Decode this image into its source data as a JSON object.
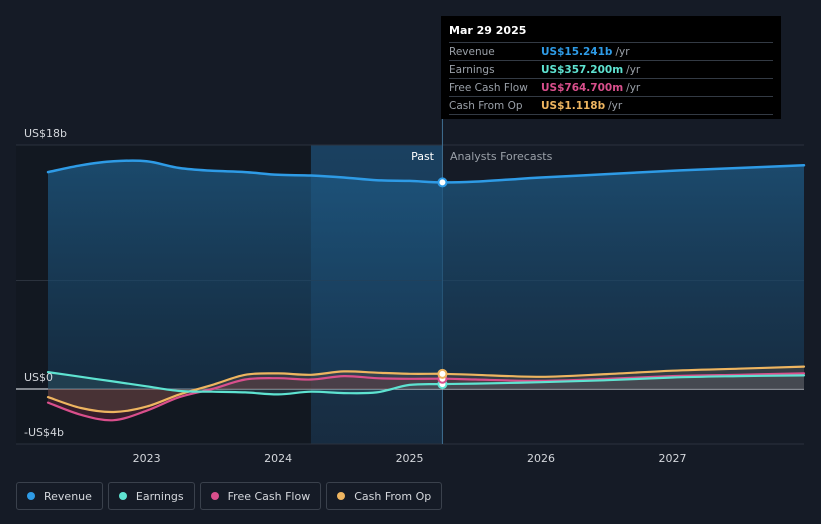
{
  "tooltip": {
    "date": "Mar 29 2025",
    "rows": [
      {
        "label": "Revenue",
        "value": "US$15.241b",
        "unit": "/yr",
        "color": "#2e9be6"
      },
      {
        "label": "Earnings",
        "value": "US$357.200m",
        "unit": "/yr",
        "color": "#5ee3d1"
      },
      {
        "label": "Free Cash Flow",
        "value": "US$764.700m",
        "unit": "/yr",
        "color": "#d94f8c"
      },
      {
        "label": "Cash From Op",
        "value": "US$1.118b",
        "unit": "/yr",
        "color": "#eeb560"
      }
    ]
  },
  "labels": {
    "past": "Past",
    "forecast": "Analysts Forecasts"
  },
  "legend": [
    {
      "label": "Revenue",
      "color": "#2e9be6"
    },
    {
      "label": "Earnings",
      "color": "#5ee3d1"
    },
    {
      "label": "Free Cash Flow",
      "color": "#d94f8c"
    },
    {
      "label": "Cash From Op",
      "color": "#eeb560"
    }
  ],
  "chart_data": {
    "type": "line",
    "y_unit": "US$ billions",
    "ylim": [
      -4,
      18
    ],
    "y_tick_labels": [
      {
        "value": 18,
        "label": "US$18b"
      },
      {
        "value": 0,
        "label": "US$0"
      },
      {
        "value": -4,
        "label": "-US$4b"
      }
    ],
    "x_range": [
      2022.25,
      2028.0
    ],
    "x_tick_labels": [
      {
        "value": 2023.0,
        "label": "2023"
      },
      {
        "value": 2024.0,
        "label": "2024"
      },
      {
        "value": 2025.0,
        "label": "2025"
      },
      {
        "value": 2026.0,
        "label": "2026"
      },
      {
        "value": 2027.0,
        "label": "2027"
      }
    ],
    "past_band_start": 2024.25,
    "present": 2025.25,
    "series": [
      {
        "name": "Revenue",
        "color": "#2e9be6",
        "points": [
          [
            2022.25,
            16.0
          ],
          [
            2022.5,
            16.5
          ],
          [
            2022.75,
            16.8
          ],
          [
            2023.0,
            16.8
          ],
          [
            2023.25,
            16.3
          ],
          [
            2023.5,
            16.1
          ],
          [
            2023.75,
            16.0
          ],
          [
            2024.0,
            15.8
          ],
          [
            2024.25,
            15.75
          ],
          [
            2024.5,
            15.6
          ],
          [
            2024.75,
            15.4
          ],
          [
            2025.0,
            15.35
          ],
          [
            2025.25,
            15.24
          ],
          [
            2025.5,
            15.3
          ],
          [
            2025.75,
            15.45
          ],
          [
            2026.0,
            15.6
          ],
          [
            2026.5,
            15.85
          ],
          [
            2027.0,
            16.1
          ],
          [
            2027.5,
            16.3
          ],
          [
            2028.0,
            16.5
          ]
        ]
      },
      {
        "name": "Earnings",
        "color": "#5ee3d1",
        "points": [
          [
            2022.25,
            1.25
          ],
          [
            2022.5,
            0.9
          ],
          [
            2022.75,
            0.55
          ],
          [
            2023.0,
            0.2
          ],
          [
            2023.25,
            -0.15
          ],
          [
            2023.5,
            -0.2
          ],
          [
            2023.75,
            -0.25
          ],
          [
            2024.0,
            -0.4
          ],
          [
            2024.25,
            -0.2
          ],
          [
            2024.5,
            -0.3
          ],
          [
            2024.75,
            -0.25
          ],
          [
            2025.0,
            0.3
          ],
          [
            2025.25,
            0.36
          ],
          [
            2025.5,
            0.4
          ],
          [
            2026.0,
            0.5
          ],
          [
            2026.5,
            0.65
          ],
          [
            2027.0,
            0.85
          ],
          [
            2027.5,
            0.95
          ],
          [
            2028.0,
            1.0
          ]
        ]
      },
      {
        "name": "Free Cash Flow",
        "color": "#d94f8c",
        "points": [
          [
            2022.25,
            -1.0
          ],
          [
            2022.5,
            -1.9
          ],
          [
            2022.75,
            -2.3
          ],
          [
            2023.0,
            -1.6
          ],
          [
            2023.25,
            -0.6
          ],
          [
            2023.5,
            0.0
          ],
          [
            2023.75,
            0.7
          ],
          [
            2024.0,
            0.8
          ],
          [
            2024.25,
            0.7
          ],
          [
            2024.5,
            0.95
          ],
          [
            2024.75,
            0.8
          ],
          [
            2025.0,
            0.75
          ],
          [
            2025.25,
            0.76
          ],
          [
            2025.5,
            0.7
          ],
          [
            2026.0,
            0.6
          ],
          [
            2026.5,
            0.75
          ],
          [
            2027.0,
            0.95
          ],
          [
            2027.5,
            1.05
          ],
          [
            2028.0,
            1.15
          ]
        ]
      },
      {
        "name": "Cash From Op",
        "color": "#eeb560",
        "points": [
          [
            2022.25,
            -0.6
          ],
          [
            2022.5,
            -1.4
          ],
          [
            2022.75,
            -1.7
          ],
          [
            2023.0,
            -1.3
          ],
          [
            2023.25,
            -0.4
          ],
          [
            2023.5,
            0.3
          ],
          [
            2023.75,
            1.05
          ],
          [
            2024.0,
            1.15
          ],
          [
            2024.25,
            1.05
          ],
          [
            2024.5,
            1.3
          ],
          [
            2024.75,
            1.2
          ],
          [
            2025.0,
            1.12
          ],
          [
            2025.25,
            1.118
          ],
          [
            2025.5,
            1.05
          ],
          [
            2026.0,
            0.9
          ],
          [
            2026.5,
            1.1
          ],
          [
            2027.0,
            1.35
          ],
          [
            2027.5,
            1.5
          ],
          [
            2028.0,
            1.65
          ]
        ]
      }
    ]
  }
}
